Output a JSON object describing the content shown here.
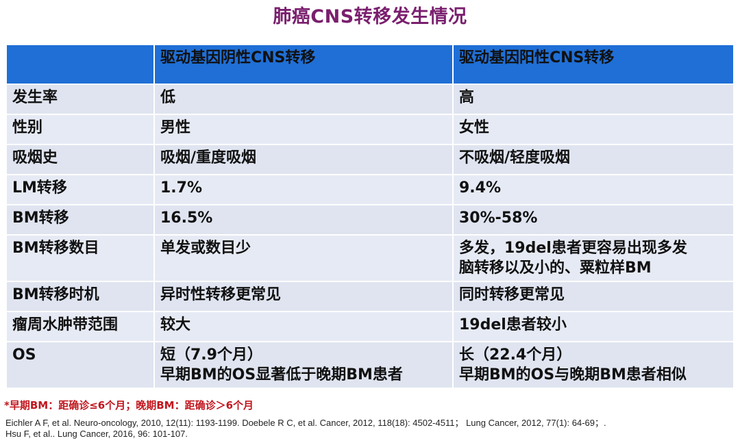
{
  "title": "肺癌CNS转移发生情况",
  "table": {
    "headers": [
      "",
      "驱动基因阴性CNS转移",
      "驱动基因阳性CNS转移"
    ],
    "rows": [
      {
        "label": "发生率",
        "negative": [
          "低"
        ],
        "positive": [
          "高"
        ]
      },
      {
        "label": "性别",
        "negative": [
          "男性"
        ],
        "positive": [
          "女性"
        ]
      },
      {
        "label": "吸烟史",
        "negative": [
          "吸烟/重度吸烟"
        ],
        "positive": [
          "不吸烟/轻度吸烟"
        ]
      },
      {
        "label": "LM转移",
        "negative": [
          "1.7%"
        ],
        "positive": [
          "9.4%"
        ]
      },
      {
        "label": "BM转移",
        "negative": [
          "16.5%"
        ],
        "positive": [
          "30%-58%"
        ]
      },
      {
        "label": "BM转移数目",
        "negative": [
          "单发或数目少"
        ],
        "positive": [
          "多发，19del患者更容易出现多发",
          "脑转移以及小的、粟粒样BM"
        ]
      },
      {
        "label": "BM转移时机",
        "negative": [
          "异时性转移更常见"
        ],
        "positive": [
          "同时转移更常见"
        ]
      },
      {
        "label": "瘤周水肿带范围",
        "negative": [
          "较大"
        ],
        "positive": [
          "19del患者较小"
        ]
      },
      {
        "label": "OS",
        "negative": [
          "短（7.9个月）",
          "早期BM的OS显著低于晚期BM患者"
        ],
        "positive": [
          "长（22.4个月）",
          "早期BM的OS与晚期BM患者相似"
        ]
      }
    ]
  },
  "footnote": "*早期BM：距确诊≤6个月；晚期BM：距确诊＞6个月",
  "references": [
    "Eichler A F,  et al. Neuro-oncology, 2010, 12(11): 1193-1199. Doebele R C, et al. Cancer, 2012, 118(18): 4502-4511；  Lung Cancer, 2012, 77(1): 64-69；.",
    "Hsu F, et al.. Lung Cancer, 2016, 96: 101-107."
  ],
  "colors": {
    "title": "#7a1f6e",
    "header_bg": "#1f6fd6",
    "row_bg": "#dfe4f0",
    "negative_text": "#c0161d"
  }
}
